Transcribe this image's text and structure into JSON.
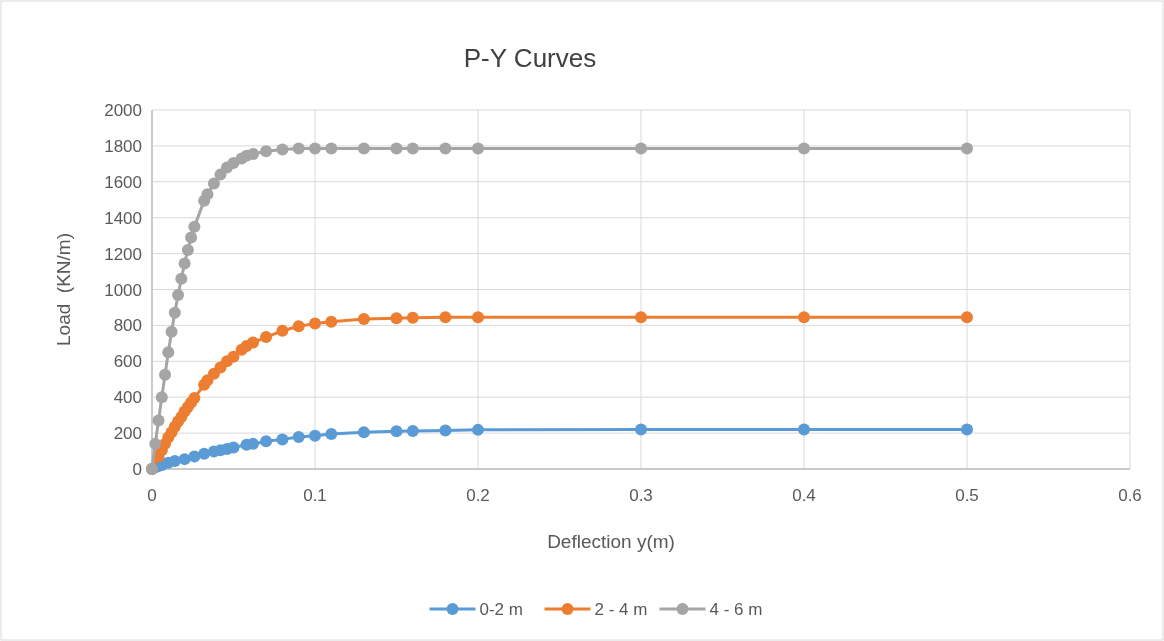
{
  "chart_data": {
    "type": "line",
    "title": "P-Y Curves",
    "xlabel": "Deflection y(m)",
    "ylabel": "Load  (KN/m)",
    "xlim": [
      0,
      0.6
    ],
    "xticks": [
      0,
      0.1,
      0.2,
      0.3,
      0.4,
      0.5,
      0.6
    ],
    "ylim": [
      0,
      2000
    ],
    "yticks": [
      0,
      200,
      400,
      600,
      800,
      1000,
      1200,
      1400,
      1600,
      1800,
      2000
    ],
    "grid": true,
    "legend": "bottom",
    "marker": "circle",
    "line_style": "solid",
    "series": [
      {
        "name": "0-2 m",
        "color": "#5b9bd5",
        "x": [
          0,
          0.002,
          0.004,
          0.006,
          0.01,
          0.014,
          0.02,
          0.026,
          0.032,
          0.038,
          0.042,
          0.046,
          0.05,
          0.058,
          0.062,
          0.07,
          0.08,
          0.09,
          0.1,
          0.11,
          0.13,
          0.15,
          0.16,
          0.18,
          0.2,
          0.3,
          0.4,
          0.5
        ],
        "values": [
          0,
          10,
          16,
          22,
          35,
          45,
          55,
          70,
          85,
          98,
          105,
          112,
          120,
          135,
          140,
          155,
          165,
          178,
          185,
          195,
          205,
          210,
          212,
          215,
          218,
          220,
          220,
          220
        ]
      },
      {
        "name": "2 - 4 m",
        "color": "#ed7d31",
        "x": [
          0,
          0.004,
          0.006,
          0.008,
          0.01,
          0.012,
          0.014,
          0.016,
          0.018,
          0.02,
          0.022,
          0.024,
          0.026,
          0.032,
          0.034,
          0.038,
          0.042,
          0.046,
          0.05,
          0.055,
          0.058,
          0.062,
          0.07,
          0.08,
          0.09,
          0.1,
          0.11,
          0.13,
          0.15,
          0.16,
          0.18,
          0.2,
          0.3,
          0.4,
          0.5
        ],
        "values": [
          0,
          70,
          105,
          140,
          175,
          205,
          235,
          265,
          290,
          320,
          345,
          370,
          395,
          470,
          495,
          530,
          565,
          600,
          625,
          665,
          685,
          705,
          735,
          770,
          795,
          810,
          820,
          835,
          840,
          842,
          845,
          845,
          845,
          845,
          845
        ]
      },
      {
        "name": "4 - 6 m",
        "color": "#a5a5a5",
        "x": [
          0,
          0.002,
          0.004,
          0.006,
          0.008,
          0.01,
          0.012,
          0.014,
          0.016,
          0.018,
          0.02,
          0.022,
          0.024,
          0.026,
          0.032,
          0.034,
          0.038,
          0.042,
          0.046,
          0.05,
          0.055,
          0.058,
          0.062,
          0.07,
          0.08,
          0.09,
          0.1,
          0.11,
          0.13,
          0.15,
          0.16,
          0.18,
          0.2,
          0.3,
          0.4,
          0.5
        ],
        "values": [
          0,
          140,
          270,
          400,
          525,
          650,
          765,
          870,
          970,
          1060,
          1145,
          1220,
          1290,
          1350,
          1495,
          1530,
          1590,
          1640,
          1680,
          1705,
          1730,
          1745,
          1755,
          1770,
          1780,
          1785,
          1785,
          1785,
          1785,
          1785,
          1785,
          1785,
          1785,
          1785,
          1785,
          1785
        ]
      }
    ]
  }
}
